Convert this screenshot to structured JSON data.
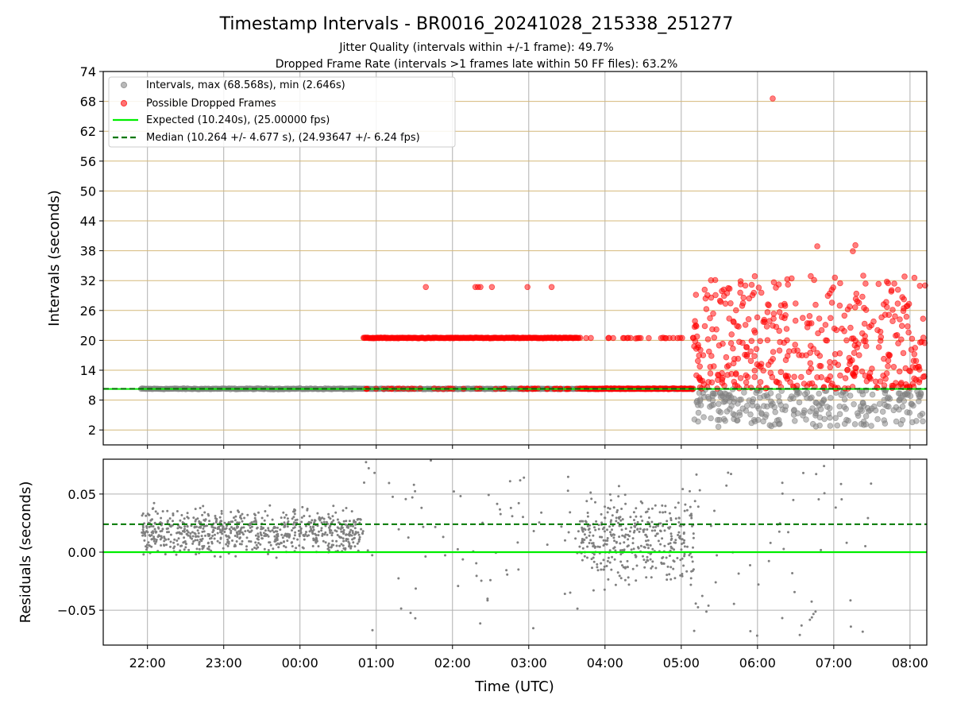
{
  "header": {
    "title": "Timestamp Intervals - BR0016_20241028_215338_251277",
    "subtitle1": "Jitter Quality (intervals within +/-1 frame): 49.7%",
    "subtitle2": "Dropped Frame Rate (intervals >1 frames late within 50 FF files): 63.2%"
  },
  "chart_data": [
    {
      "type": "scatter",
      "panel": "top",
      "ylabel": "Intervals (seconds)",
      "xlabel": "",
      "ylim": [
        -1,
        74
      ],
      "xlim_hours": [
        21.42,
        32.22
      ],
      "yticks": [
        2,
        8,
        14,
        20,
        26,
        32,
        38,
        44,
        50,
        56,
        62,
        68,
        74
      ],
      "ygrid": true,
      "xgrid": true,
      "legend_position": "top-left",
      "legend": [
        "Intervals, max (68.568s), min (2.646s)",
        "Possible Dropped Frames",
        "Expected (10.240s), (25.00000 fps)",
        "Median (10.264 +/- 4.677 s), (24.93647 +/- 6.24 fps)"
      ],
      "expected_value": 10.24,
      "median_value": 10.264,
      "max_interval": 68.568,
      "min_interval": 2.646,
      "series": [
        {
          "name": "Intervals",
          "color": "#808080",
          "segments": [
            {
              "x_start": "21:55",
              "x_end": "00:48",
              "y_center": 10.26,
              "y_spread": 0.15
            },
            {
              "x_start": "00:48",
              "x_end": "05:10",
              "y_center": 10.26,
              "y_spread": 0.1
            },
            {
              "x_start": "05:10",
              "x_end": "08:12",
              "y_range": [
                2.6,
                10.2
              ]
            }
          ]
        },
        {
          "name": "Possible Dropped Frames",
          "color": "#ff0000",
          "segments": [
            {
              "x_start": "00:50",
              "x_end": "03:40",
              "y_center": 20.48
            },
            {
              "x_start": "03:40",
              "x_end": "05:10",
              "y_center": 20.48
            },
            {
              "x_start": "00:50",
              "x_end": "03:40",
              "y_center": 10.28
            },
            {
              "x_start": "03:40",
              "x_end": "05:10",
              "y_center": 10.28
            },
            {
              "x_start": "05:10",
              "x_end": "08:12",
              "y_range": [
                10.3,
                33
              ]
            }
          ],
          "outliers": [
            {
              "x": "06:12",
              "y": 68.57
            },
            {
              "x": "06:47",
              "y": 38.9
            },
            {
              "x": "07:17",
              "y": 39.1
            },
            {
              "x": "07:15",
              "y": 37.9
            },
            {
              "x": "01:39",
              "y": 30.7
            },
            {
              "x": "02:18",
              "y": 30.7
            },
            {
              "x": "02:20",
              "y": 30.7
            },
            {
              "x": "02:22",
              "y": 30.7
            },
            {
              "x": "02:31",
              "y": 30.7
            },
            {
              "x": "02:59",
              "y": 30.7
            },
            {
              "x": "03:18",
              "y": 30.7
            },
            {
              "x": "06:01",
              "y": 30.6
            },
            {
              "x": "05:27",
              "y": 29.1
            }
          ]
        },
        {
          "name": "Expected (10.240s), (25.00000 fps)",
          "color": "#00ee00",
          "value": 10.24
        },
        {
          "name": "Median (10.264 +/- 4.677 s), (24.93647 +/- 6.24 fps)",
          "color": "#007700",
          "value": 10.264
        }
      ]
    },
    {
      "type": "scatter",
      "panel": "bottom",
      "ylabel": "Residuals (seconds)",
      "xlabel": "Time (UTC)",
      "ylim": [
        -0.08,
        0.08
      ],
      "yticks": [
        -0.05,
        0.0,
        0.05
      ],
      "ytick_labels": [
        "−0.05",
        "0.00",
        "0.05"
      ],
      "xtick_labels": [
        "22:00",
        "23:00",
        "00:00",
        "01:00",
        "02:00",
        "03:00",
        "04:00",
        "05:00",
        "06:00",
        "07:00",
        "08:00"
      ],
      "series": [
        {
          "name": "Residuals",
          "color": "#808080",
          "segments": [
            {
              "x_start": "21:55",
              "x_end": "00:50",
              "y_center": 0.018,
              "y_spread": 0.03
            },
            {
              "x_start": "00:50",
              "x_end": "03:40",
              "sparse": true,
              "y_range": [
                -0.08,
                0.08
              ]
            },
            {
              "x_start": "03:40",
              "x_end": "05:10",
              "y_center": 0.01,
              "y_spread": 0.06
            },
            {
              "x_start": "05:10",
              "x_end": "07:30",
              "sparse": true,
              "y_range": [
                -0.08,
                0.08
              ]
            }
          ]
        },
        {
          "name": "Expected",
          "color": "#00ee00",
          "value": 0.0
        },
        {
          "name": "Median",
          "color": "#007700",
          "value": 0.024
        }
      ]
    }
  ],
  "colors": {
    "grid": "#b0b0b0",
    "hgrid_top": "#d4b87a",
    "intervals": "#808080",
    "dropped": "#ff0000",
    "expected": "#00ee00",
    "median": "#007700"
  }
}
